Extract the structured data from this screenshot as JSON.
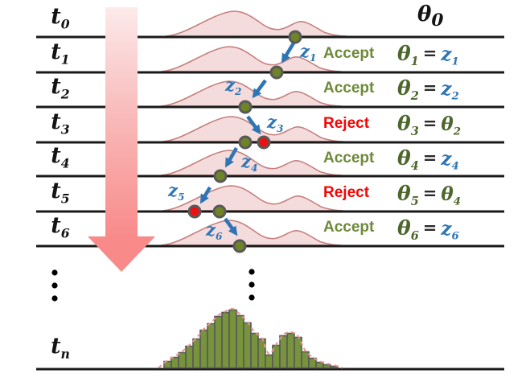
{
  "rows": [
    {
      "time_base": "t",
      "time_sub": "0",
      "theta_base": "θ",
      "theta_sub": "0"
    },
    {
      "time_base": "t",
      "time_sub": "1",
      "z_base": "z",
      "z_sub": "1",
      "decision": "Accept",
      "eq": {
        "lhs": "θ",
        "lhs_sub": "1",
        "sign": "=",
        "rhs": "z",
        "rhs_sub": "1"
      }
    },
    {
      "time_base": "t",
      "time_sub": "2",
      "z_base": "z",
      "z_sub": "2",
      "decision": "Accept",
      "eq": {
        "lhs": "θ",
        "lhs_sub": "2",
        "sign": "=",
        "rhs": "z",
        "rhs_sub": "2"
      }
    },
    {
      "time_base": "t",
      "time_sub": "3",
      "z_base": "z",
      "z_sub": "3",
      "decision": "Reject",
      "eq": {
        "lhs": "θ",
        "lhs_sub": "3",
        "sign": "=",
        "rhs": "θ",
        "rhs_sub": "2"
      }
    },
    {
      "time_base": "t",
      "time_sub": "4",
      "z_base": "z",
      "z_sub": "4",
      "decision": "Accept",
      "eq": {
        "lhs": "θ",
        "lhs_sub": "4",
        "sign": "=",
        "rhs": "z",
        "rhs_sub": "4"
      }
    },
    {
      "time_base": "t",
      "time_sub": "5",
      "z_base": "z",
      "z_sub": "5",
      "decision": "Reject",
      "eq": {
        "lhs": "θ",
        "lhs_sub": "5",
        "sign": "=",
        "rhs": "θ",
        "rhs_sub": "4"
      }
    },
    {
      "time_base": "t",
      "time_sub": "6",
      "z_base": "z",
      "z_sub": "6",
      "decision": "Accept",
      "eq": {
        "lhs": "θ",
        "lhs_sub": "6",
        "sign": "=",
        "rhs": "z",
        "rhs_sub": "6"
      }
    },
    {
      "time_base": "t",
      "time_sub": "n"
    }
  ],
  "colors": {
    "proposal_blue": "#2e75b6",
    "accept_green": "#6d8a38",
    "reject_red": "#f60404",
    "theta_olive": "#4d662b",
    "curve_fill": "#f5dcdc",
    "curve_stroke": "#c4817f",
    "dot_green": "#6e8426",
    "dot_red": "#ee1010",
    "dot_ring": "#595959",
    "time_arrow_light": "#fdeaea",
    "time_arrow_dark": "#f98a8a",
    "line_black": "#1a1a1a"
  },
  "chart_data": {
    "type": "bar",
    "title": "",
    "xlabel": "",
    "ylabel": "",
    "description": "Converged sample histogram at t_n with dashed target-density overlay (bimodal)",
    "values": [
      8,
      13,
      19,
      27,
      36,
      47,
      55,
      64,
      69,
      72,
      65,
      56,
      43,
      36,
      16,
      28,
      40,
      43,
      38,
      20,
      12,
      7,
      4,
      2
    ],
    "bar_fill": "#77933C",
    "bar_stroke": "#595959",
    "overlay_curve_color": "#e59596",
    "grid": false,
    "legend": false
  }
}
